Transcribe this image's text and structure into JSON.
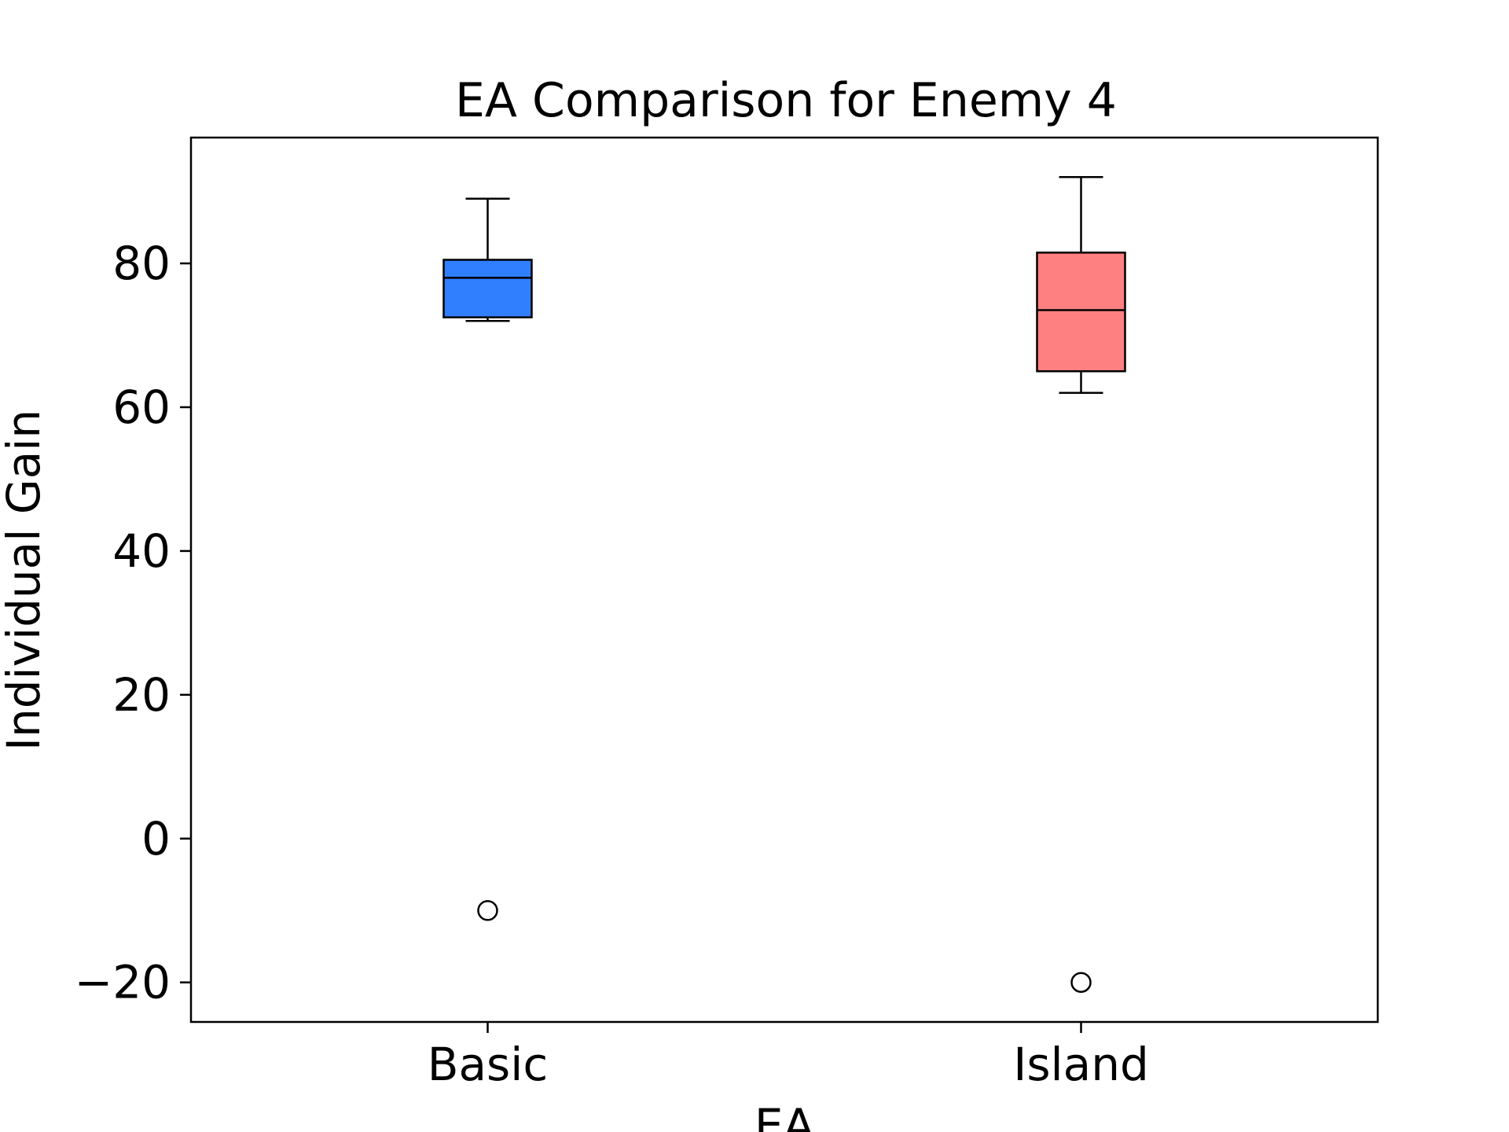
{
  "chart_data": {
    "type": "box",
    "title": "EA Comparison for Enemy 4",
    "xlabel": "EA",
    "ylabel": "Individual Gain",
    "categories": [
      "Basic",
      "Island"
    ],
    "ylim": [
      -25.5,
      97.5
    ],
    "yticks": [
      -20,
      0,
      20,
      40,
      60,
      80
    ],
    "ytick_labels": [
      "−20",
      "0",
      "20",
      "40",
      "60",
      "80"
    ],
    "grid": false,
    "legend": "none",
    "boxes": [
      {
        "name": "Basic",
        "whisker_low": 72,
        "q1": 72.5,
        "median": 78,
        "q3": 80.5,
        "whisker_high": 89,
        "fliers": [
          -10
        ],
        "color": "#2f7fff"
      },
      {
        "name": "Island",
        "whisker_low": 62,
        "q1": 65,
        "median": 73.5,
        "q3": 81.5,
        "whisker_high": 92,
        "fliers": [
          -20
        ],
        "color": "#ff8080"
      }
    ]
  }
}
